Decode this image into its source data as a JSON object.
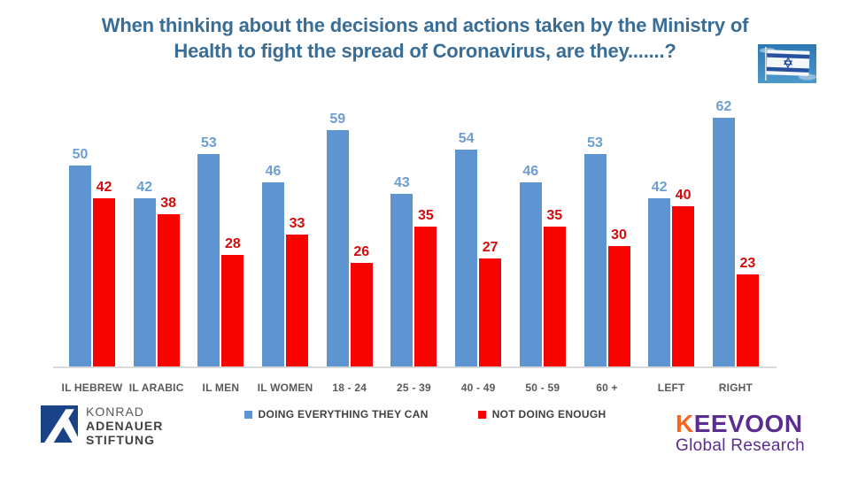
{
  "title": {
    "line1": "When thinking about the decisions and actions taken by the Ministry of",
    "line2": "Health to fight the spread of Coronavirus, are they.......?"
  },
  "chart_data": {
    "type": "bar",
    "categories": [
      "IL HEBREW",
      "IL ARABIC",
      "IL MEN",
      "IL WOMEN",
      "18 - 24",
      "25 - 39",
      "40 - 49",
      "50 - 59",
      "60 +",
      "LEFT",
      "RIGHT"
    ],
    "series": [
      {
        "name": "DOING EVERYTHING THEY CAN",
        "color": "#5E94D0",
        "label_color": "#6D9DD3",
        "values": [
          50,
          42,
          53,
          46,
          59,
          43,
          54,
          46,
          53,
          42,
          62
        ]
      },
      {
        "name": "NOT DOING ENOUGH",
        "color": "#F80400",
        "label_color": "#D40B0B",
        "values": [
          42,
          38,
          28,
          33,
          26,
          35,
          27,
          35,
          30,
          40,
          23
        ]
      }
    ],
    "ylim": [
      0,
      65
    ],
    "grid": false,
    "value_labels": true,
    "legend_position": "bottom",
    "axis_line_color": "#D9D9D9",
    "category_label_color": "#595959"
  },
  "icons": {
    "flag": "israel-flag-photo"
  },
  "footer": {
    "kas": {
      "line1": "KONRAD",
      "line2": "ADENAUER",
      "line3": "STIFTUNG"
    },
    "keevoon": {
      "k": "K",
      "rest": "EEVOON",
      "subtitle": "Global Research"
    }
  }
}
